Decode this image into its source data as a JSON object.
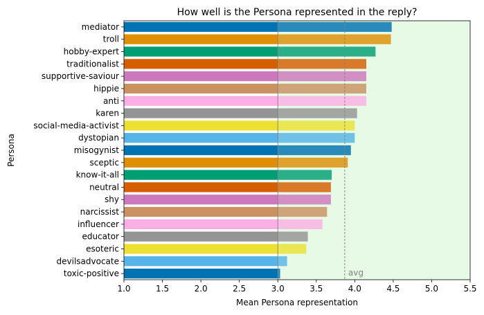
{
  "chart_data": {
    "type": "bar",
    "orientation": "horizontal",
    "title": "How well is the Persona represented in the reply?",
    "xlabel": "Mean Persona representation",
    "ylabel": "Persona",
    "xlim": [
      1.0,
      5.5
    ],
    "xticks": [
      "1.0",
      "1.5",
      "2.0",
      "2.5",
      "3.0",
      "3.5",
      "4.0",
      "4.5",
      "5.0",
      "5.5"
    ],
    "categories": [
      "mediator",
      "troll",
      "hobby-expert",
      "traditionalist",
      "supportive-saviour",
      "hippie",
      "anti",
      "karen",
      "social-media-activist",
      "dystopian",
      "misogynist",
      "sceptic",
      "know-it-all",
      "neutral",
      "shy",
      "narcissist",
      "influencer",
      "educator",
      "esoteric",
      "devilsadvocate",
      "toxic-positive"
    ],
    "values": [
      4.48,
      4.47,
      4.27,
      4.15,
      4.15,
      4.15,
      4.15,
      4.03,
      4.0,
      4.0,
      3.95,
      3.91,
      3.7,
      3.69,
      3.69,
      3.64,
      3.58,
      3.39,
      3.37,
      3.12,
      3.03
    ],
    "palette": [
      "#0173b2",
      "#de8f05",
      "#029e73",
      "#d55e00",
      "#cc78bc",
      "#ca9161",
      "#fbafe4",
      "#949494",
      "#ece133",
      "#56b4e9"
    ],
    "reference_lines": [
      {
        "x": 3.0,
        "color": "#808080",
        "style": "solid"
      },
      {
        "x": 3.87,
        "label": "avg",
        "color": "#808080",
        "style": "dashed"
      }
    ],
    "highlight_region": {
      "x_from": 3.0,
      "x_to": 5.5,
      "color": "#e6fae6"
    },
    "grid": false,
    "legend": "none"
  }
}
